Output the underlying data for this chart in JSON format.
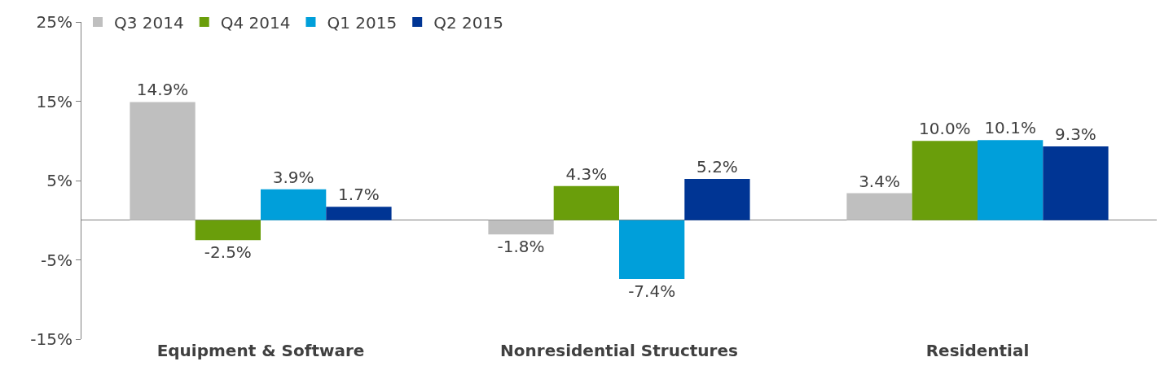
{
  "chart_data": {
    "type": "bar",
    "categories": [
      "Equipment & Software",
      "Nonresidential Structures",
      "Residential"
    ],
    "series": [
      {
        "name": "Q3 2014",
        "color": "#bfbfbf",
        "values": [
          14.9,
          -1.8,
          3.4
        ],
        "value_labels": [
          "14.9%",
          "-1.8%",
          "3.4%"
        ]
      },
      {
        "name": "Q4 2014",
        "color": "#6a9e0b",
        "values": [
          -2.5,
          4.3,
          10.0
        ],
        "value_labels": [
          "-2.5%",
          "4.3%",
          "10.0%"
        ]
      },
      {
        "name": "Q1 2015",
        "color": "#009fda",
        "values": [
          3.9,
          -7.4,
          10.1
        ],
        "value_labels": [
          "3.9%",
          "-7.4%",
          "10.1%"
        ]
      },
      {
        "name": "Q2 2015",
        "color": "#003594",
        "values": [
          1.7,
          5.2,
          9.3
        ],
        "value_labels": [
          "1.7%",
          "5.2%",
          "9.3%"
        ]
      }
    ],
    "ylim": [
      -15,
      25
    ],
    "yticks": [
      {
        "value": -15,
        "label": "-15%"
      },
      {
        "value": -5,
        "label": "-5%"
      },
      {
        "value": 5,
        "label": "5%"
      },
      {
        "value": 15,
        "label": "15%"
      },
      {
        "value": 25,
        "label": "25%"
      }
    ],
    "legend": "top left"
  }
}
